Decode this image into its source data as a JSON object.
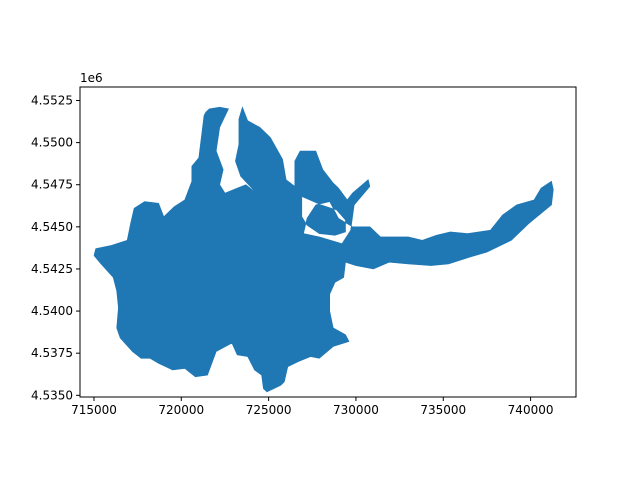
{
  "chart_data": {
    "type": "area",
    "title": "",
    "xlabel": "",
    "ylabel": "",
    "xlim": [
      714200,
      742600
    ],
    "ylim": [
      4534900,
      4553300
    ],
    "x_ticks": [
      715000,
      720000,
      725000,
      730000,
      735000,
      740000
    ],
    "x_tick_labels": [
      "715000",
      "720000",
      "725000",
      "730000",
      "735000",
      "740000"
    ],
    "y_ticks": [
      4535000,
      4537500,
      4540000,
      4542500,
      4545000,
      4547500,
      4550000,
      4552500
    ],
    "y_tick_labels": [
      "4.5350",
      "4.5375",
      "4.5400",
      "4.5425",
      "4.5450",
      "4.5475",
      "4.5500",
      "4.5525"
    ],
    "y_offset_label": "1e6",
    "grid": false,
    "fill_color": "#1f77b4",
    "outline": [
      [
        715100,
        4543700
      ],
      [
        716000,
        4543900
      ],
      [
        716900,
        4544200
      ],
      [
        717100,
        4545200
      ],
      [
        717300,
        4546100
      ],
      [
        717900,
        4546500
      ],
      [
        718700,
        4546400
      ],
      [
        719000,
        4545600
      ],
      [
        719600,
        4546200
      ],
      [
        720200,
        4546600
      ],
      [
        720600,
        4547700
      ],
      [
        720600,
        4548600
      ],
      [
        721000,
        4549100
      ],
      [
        721300,
        4551600
      ],
      [
        721400,
        4551800
      ],
      [
        721600,
        4552000
      ],
      [
        722200,
        4552100
      ],
      [
        722700,
        4552000
      ],
      [
        722200,
        4550900
      ],
      [
        722000,
        4549500
      ],
      [
        722400,
        4548400
      ],
      [
        722200,
        4547500
      ],
      [
        722500,
        4547000
      ],
      [
        723200,
        4547300
      ],
      [
        723700,
        4547500
      ],
      [
        724300,
        4547000
      ],
      [
        723400,
        4548000
      ],
      [
        723100,
        4548900
      ],
      [
        723300,
        4549900
      ],
      [
        723300,
        4551400
      ],
      [
        723500,
        4552100
      ],
      [
        723800,
        4551300
      ],
      [
        724500,
        4550900
      ],
      [
        725100,
        4550300
      ],
      [
        725800,
        4549000
      ],
      [
        726000,
        4547800
      ],
      [
        726500,
        4547400
      ],
      [
        726500,
        4548900
      ],
      [
        726800,
        4549500
      ],
      [
        727700,
        4549500
      ],
      [
        728100,
        4548400
      ],
      [
        728700,
        4547600
      ],
      [
        729000,
        4547300
      ],
      [
        729500,
        4546600
      ],
      [
        729800,
        4547000
      ],
      [
        730700,
        4547800
      ],
      [
        730800,
        4547400
      ],
      [
        729900,
        4546300
      ],
      [
        729700,
        4544800
      ],
      [
        729200,
        4544000
      ],
      [
        727900,
        4544400
      ],
      [
        727000,
        4544600
      ],
      [
        727200,
        4545500
      ],
      [
        727700,
        4546300
      ],
      [
        728500,
        4546500
      ],
      [
        729000,
        4545500
      ],
      [
        729800,
        4545000
      ],
      [
        730800,
        4545000
      ],
      [
        731400,
        4544400
      ],
      [
        732200,
        4544400
      ],
      [
        733000,
        4544400
      ],
      [
        733800,
        4544200
      ],
      [
        734600,
        4544500
      ],
      [
        735400,
        4544700
      ],
      [
        736400,
        4544600
      ],
      [
        737700,
        4544800
      ],
      [
        738400,
        4545700
      ],
      [
        739200,
        4546300
      ],
      [
        740200,
        4546600
      ],
      [
        740600,
        4547300
      ],
      [
        741200,
        4547700
      ],
      [
        741300,
        4547200
      ],
      [
        741200,
        4546300
      ],
      [
        740600,
        4545800
      ],
      [
        739900,
        4545200
      ],
      [
        738900,
        4544200
      ],
      [
        737500,
        4543500
      ],
      [
        736500,
        4543200
      ],
      [
        735300,
        4542800
      ],
      [
        734300,
        4542700
      ],
      [
        733000,
        4542800
      ],
      [
        731900,
        4542900
      ],
      [
        731000,
        4542500
      ],
      [
        730000,
        4542700
      ],
      [
        729400,
        4542900
      ],
      [
        729300,
        4542000
      ],
      [
        728800,
        4541700
      ],
      [
        728500,
        4541000
      ],
      [
        728500,
        4540000
      ],
      [
        728700,
        4539000
      ],
      [
        729400,
        4538600
      ],
      [
        729600,
        4538200
      ],
      [
        728700,
        4537900
      ],
      [
        727900,
        4537200
      ],
      [
        727400,
        4537300
      ],
      [
        726700,
        4537000
      ],
      [
        726100,
        4536700
      ],
      [
        725900,
        4535800
      ],
      [
        725700,
        4535600
      ],
      [
        725300,
        4535400
      ],
      [
        724900,
        4535200
      ],
      [
        724700,
        4535400
      ],
      [
        724600,
        4536200
      ],
      [
        724200,
        4536500
      ],
      [
        723800,
        4537300
      ],
      [
        723200,
        4537400
      ],
      [
        722900,
        4538100
      ],
      [
        722000,
        4537600
      ],
      [
        721500,
        4536200
      ],
      [
        720800,
        4536100
      ],
      [
        720200,
        4536600
      ],
      [
        719500,
        4536500
      ],
      [
        718700,
        4536900
      ],
      [
        718200,
        4537200
      ],
      [
        717700,
        4537200
      ],
      [
        717200,
        4537600
      ],
      [
        716500,
        4538400
      ],
      [
        716300,
        4539000
      ],
      [
        716400,
        4540200
      ],
      [
        716300,
        4541200
      ],
      [
        716100,
        4542000
      ],
      [
        715400,
        4542800
      ],
      [
        715000,
        4543300
      ]
    ],
    "holes": [
      [
        [
          726900,
          4546800
        ],
        [
          726900,
          4545600
        ],
        [
          727200,
          4545100
        ],
        [
          727900,
          4544600
        ],
        [
          728800,
          4544500
        ],
        [
          729400,
          4544700
        ],
        [
          729400,
          4545400
        ],
        [
          728900,
          4546000
        ],
        [
          728000,
          4546300
        ]
      ]
    ]
  }
}
